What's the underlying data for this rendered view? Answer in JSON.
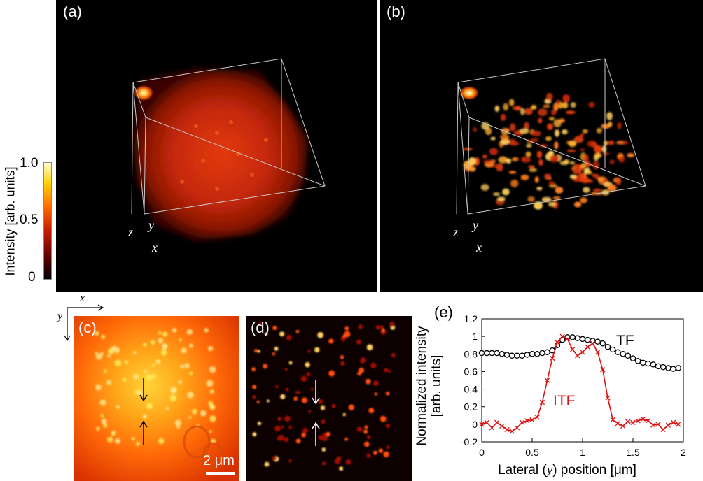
{
  "panels": {
    "a": {
      "label": "(a)"
    },
    "b": {
      "label": "(b)"
    },
    "c": {
      "label": "(c)",
      "scalebar": "2 μm"
    },
    "d": {
      "label": "(d)"
    },
    "e": {
      "label": "(e)"
    }
  },
  "axes_labels": {
    "x": "x",
    "y": "y",
    "z": "z"
  },
  "colorbar": {
    "label": "Intensity [arb. units]",
    "ticks": [
      "0",
      "0.5",
      "1.0"
    ],
    "colors": [
      "#000000",
      "#5a0000",
      "#c81e00",
      "#ff6a00",
      "#ffd000",
      "#ffffd0"
    ]
  },
  "chart_data": {
    "type": "line",
    "xlabel": "Lateral (y) position [μm]",
    "ylabel_line1": "Normalized intensity",
    "ylabel_line2": "[arb. units]",
    "xlim": [
      0,
      2
    ],
    "ylim": [
      -0.2,
      1.2
    ],
    "xticks": [
      "0",
      "0.5",
      "1",
      "1.5",
      "2"
    ],
    "yticks": [
      "-0.2",
      "0",
      "0.2",
      "0.4",
      "0.6",
      "0.8",
      "1",
      "1.2"
    ],
    "series": [
      {
        "name": "TF",
        "color": "#000000",
        "marker": "circle",
        "x": [
          0,
          0.05,
          0.1,
          0.15,
          0.2,
          0.25,
          0.3,
          0.35,
          0.4,
          0.45,
          0.5,
          0.55,
          0.6,
          0.65,
          0.7,
          0.75,
          0.8,
          0.85,
          0.9,
          0.95,
          1.0,
          1.05,
          1.1,
          1.15,
          1.2,
          1.25,
          1.3,
          1.35,
          1.4,
          1.45,
          1.5,
          1.55,
          1.6,
          1.65,
          1.7,
          1.75,
          1.8,
          1.85,
          1.9,
          1.95
        ],
        "y": [
          0.81,
          0.81,
          0.81,
          0.81,
          0.8,
          0.79,
          0.78,
          0.78,
          0.78,
          0.79,
          0.8,
          0.8,
          0.81,
          0.82,
          0.84,
          0.9,
          0.96,
          0.99,
          0.99,
          0.98,
          0.97,
          0.96,
          0.95,
          0.94,
          0.92,
          0.88,
          0.85,
          0.82,
          0.8,
          0.78,
          0.75,
          0.72,
          0.7,
          0.69,
          0.68,
          0.66,
          0.65,
          0.64,
          0.63,
          0.64
        ]
      },
      {
        "name": "ITF",
        "color": "#e01010",
        "marker": "x",
        "x": [
          0,
          0.05,
          0.1,
          0.15,
          0.2,
          0.25,
          0.3,
          0.35,
          0.4,
          0.45,
          0.5,
          0.55,
          0.6,
          0.65,
          0.7,
          0.75,
          0.8,
          0.85,
          0.9,
          0.95,
          1.0,
          1.05,
          1.1,
          1.15,
          1.2,
          1.25,
          1.3,
          1.35,
          1.4,
          1.45,
          1.5,
          1.55,
          1.6,
          1.65,
          1.7,
          1.75,
          1.8,
          1.85,
          1.9,
          1.95
        ],
        "y": [
          0.0,
          0.02,
          -0.04,
          0.02,
          -0.02,
          -0.06,
          -0.08,
          -0.04,
          0.02,
          0.04,
          0.05,
          0.08,
          0.25,
          0.5,
          0.75,
          0.93,
          1.0,
          0.97,
          0.85,
          0.78,
          0.82,
          0.88,
          0.92,
          0.82,
          0.62,
          0.3,
          0.05,
          0.01,
          -0.02,
          0.03,
          0.02,
          0.04,
          0.06,
          0.04,
          -0.01,
          0.0,
          -0.06,
          -0.01,
          0.02,
          0.0
        ]
      }
    ]
  }
}
